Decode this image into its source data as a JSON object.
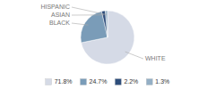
{
  "chart_data": {
    "type": "pie",
    "categories": [
      "WHITE",
      "BLACK",
      "ASIAN",
      "HISPANIC"
    ],
    "values": [
      71.8,
      24.7,
      2.2,
      1.3
    ],
    "value_labels": [
      "71.8%",
      "24.7%",
      "2.2%",
      "1.3%"
    ],
    "colors": [
      "#d5dae6",
      "#7a9cb8",
      "#2e4d7b",
      "#94afc5"
    ],
    "legend": "bottom"
  }
}
